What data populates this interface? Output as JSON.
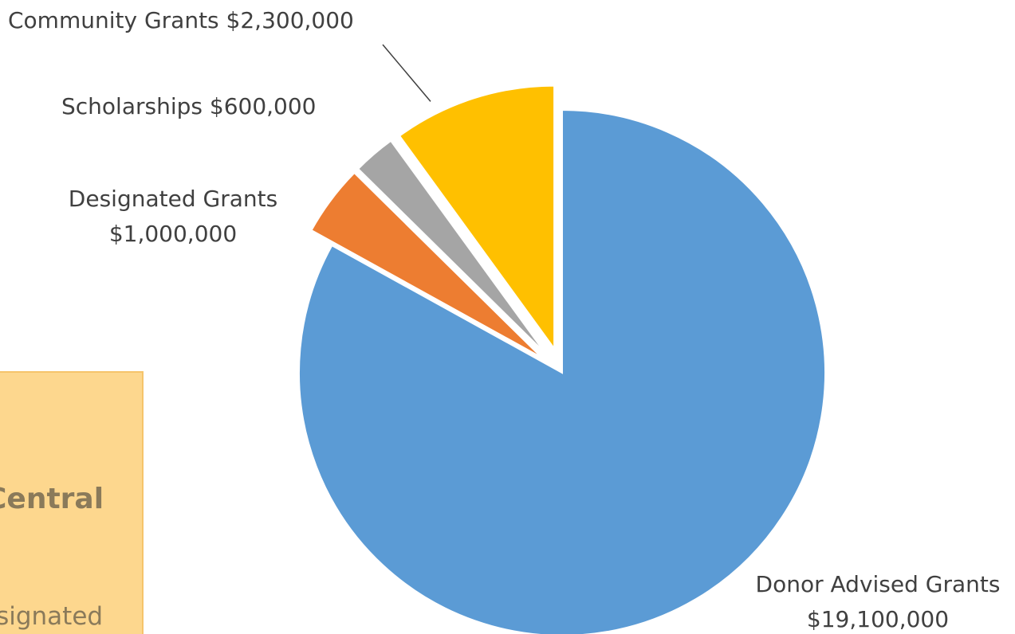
{
  "chart_data": {
    "type": "pie",
    "title": "",
    "categories": [
      "Donor Advised Grants",
      "Designated Grants",
      "Scholarships",
      "Community Grants"
    ],
    "values": [
      19100000,
      1000000,
      600000,
      2300000
    ],
    "value_labels": [
      "$19,100,000",
      "$1,000,000",
      "$600,000",
      "$2,300,000"
    ],
    "colors": [
      "#5b9bd5",
      "#ed7d31",
      "#a5a5a5",
      "#ffc000"
    ],
    "exploded": [
      false,
      true,
      true,
      true
    ],
    "start_angle_deg": 0,
    "direction": "clockwise",
    "legend": "none",
    "data_labels": "outside-with-value"
  },
  "side_panel": {
    "title_fragment": "Central",
    "text_fragment": "esignated",
    "background": "#fdd78e"
  }
}
